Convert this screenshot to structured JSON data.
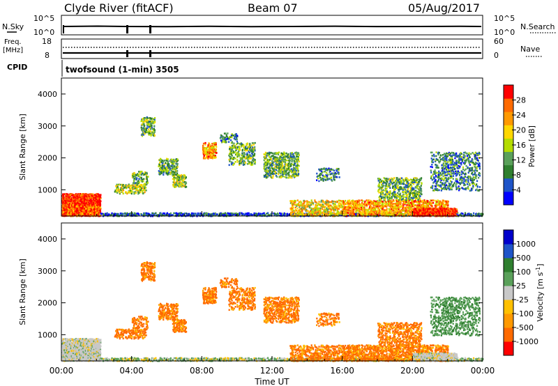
{
  "header": {
    "site": "Clyde River (fitACF)",
    "beam": "Beam 07",
    "date": "05/Aug/2017"
  },
  "noise_panel": {
    "left_label": "N.Sky",
    "right_label": "N.Search",
    "left_ticks": [
      "10^5",
      "10^0"
    ],
    "right_ticks": [
      "10^5",
      "10^0"
    ]
  },
  "freq_panel": {
    "left_label_1": "Freq.",
    "left_label_2": "[MHz]",
    "left_ticks": [
      "18",
      "8"
    ],
    "right_label": "Nave",
    "right_ticks": [
      "60",
      "0"
    ]
  },
  "cpid": {
    "label": "CPID",
    "text": "twofsound (1-min) 3505"
  },
  "colors": {
    "power": [
      "#0000ff",
      "#1e54c8",
      "#2f7f2f",
      "#5aa05a",
      "#b4dc00",
      "#ffd700",
      "#ff9900",
      "#ff6a00",
      "#ff0000"
    ],
    "velocity": [
      "#ff0000",
      "#ff6a00",
      "#ff9900",
      "#ffc000",
      "#c8c8c8",
      "#5aa05a",
      "#2f7f2f",
      "#1e54c8",
      "#0000cc"
    ]
  },
  "chart_data": [
    {
      "type": "heatmap",
      "name": "power",
      "ylabel": "Slant Range [km]",
      "yticks": [
        "1000",
        "2000",
        "3000",
        "4000"
      ],
      "ylim": [
        180,
        4500
      ],
      "xticks": [
        "00:00",
        "04:00",
        "08:00",
        "12:00",
        "16:00",
        "20:00",
        "00:00"
      ],
      "xlim": [
        0,
        24
      ],
      "colorbar_label": "Power [dB]",
      "colorbar_ticks": [
        "4",
        "8",
        "12",
        "16",
        "20",
        "24",
        "28"
      ],
      "colorbar_range": [
        0,
        32
      ]
    },
    {
      "type": "heatmap",
      "name": "velocity",
      "ylabel": "Slant Range [km]",
      "yticks": [
        "1000",
        "2000",
        "3000",
        "4000"
      ],
      "ylim": [
        180,
        4500
      ],
      "xticks": [
        "00:00",
        "04:00",
        "08:00",
        "12:00",
        "16:00",
        "20:00",
        "00:00"
      ],
      "xlim": [
        0,
        24
      ],
      "xlabel": "Time UT",
      "colorbar_label": "Velocity [m s^-1]",
      "colorbar_ticks": [
        "1000",
        "500",
        "100",
        "25",
        "-25",
        "-100",
        "-500",
        "-1000"
      ]
    }
  ]
}
